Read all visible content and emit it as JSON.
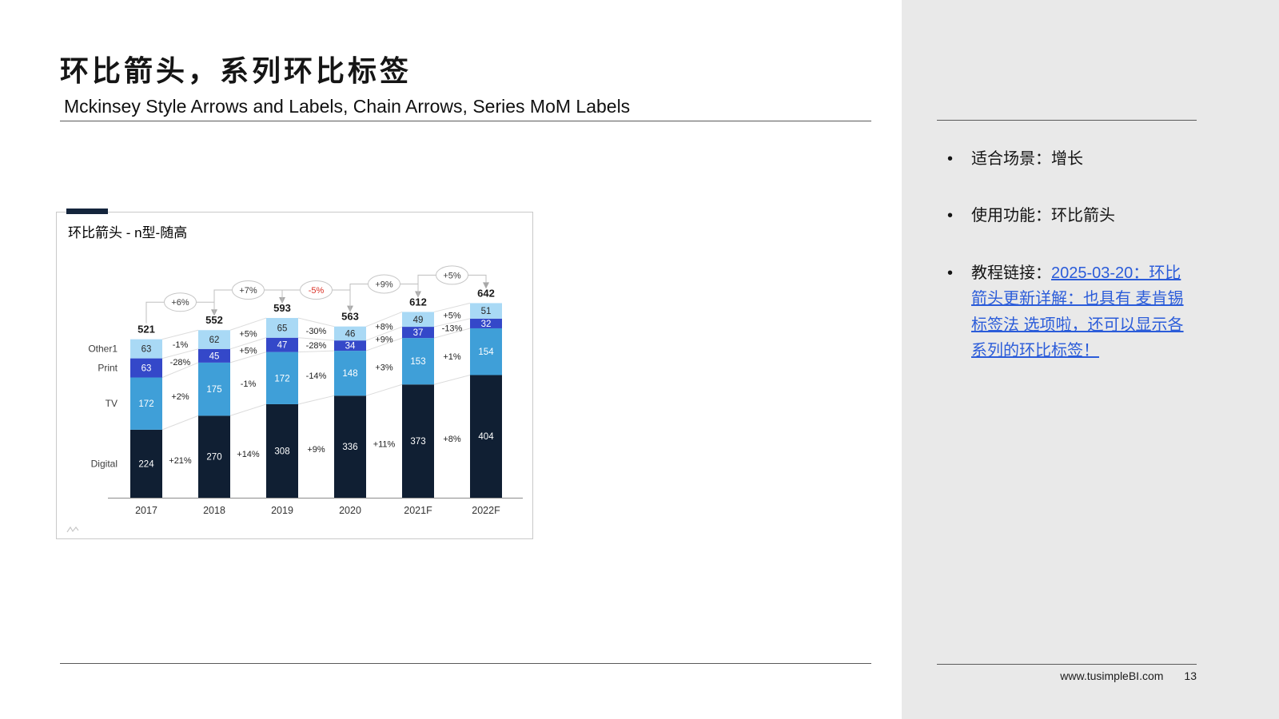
{
  "header": {
    "title_zh": "环比箭头，系列环比标签",
    "subtitle_en": "Mckinsey Style Arrows and Labels, Chain Arrows, Series MoM Labels"
  },
  "chart_panel": {
    "title": "环比箭头 - n型-随高"
  },
  "chart_data": {
    "type": "bar",
    "stacked": true,
    "title": "环比箭头 - n型-随高",
    "categories": [
      "2017",
      "2018",
      "2019",
      "2020",
      "2021F",
      "2022F"
    ],
    "series": [
      {
        "name": "Digital",
        "color": "#101f33",
        "label_color": "#ffffff",
        "values": [
          224,
          270,
          308,
          336,
          373,
          404
        ],
        "mom": [
          "+21%",
          "+14%",
          "+9%",
          "+11%",
          "+8%"
        ]
      },
      {
        "name": "TV",
        "color": "#3f9fd8",
        "label_color": "#ffffff",
        "values": [
          172,
          175,
          172,
          148,
          153,
          154
        ],
        "mom": [
          "+2%",
          "-1%",
          "-14%",
          "+3%",
          "+1%"
        ]
      },
      {
        "name": "Print",
        "color": "#3448c9",
        "label_color": "#ffffff",
        "values": [
          63,
          45,
          47,
          34,
          37,
          32
        ],
        "mom": [
          "-28%",
          "+5%",
          "-28%",
          "+9%",
          "-13%"
        ]
      },
      {
        "name": "Other1",
        "color": "#a9d9f5",
        "label_color": "#2a2a2a",
        "values": [
          63,
          62,
          65,
          46,
          49,
          51
        ],
        "mom": [
          "-1%",
          "+5%",
          "-30%",
          "+8%",
          "+5%"
        ]
      }
    ],
    "totals": [
      "521",
      "552",
      "593",
      "563",
      "612",
      "642"
    ],
    "chain_labels": [
      "+6%",
      "+7%",
      "-5%",
      "+9%",
      "+5%"
    ],
    "chain_label_colors": [
      "#3c3c3c",
      "#3c3c3c",
      "#d93025",
      "#3c3c3c",
      "#3c3c3c"
    ],
    "negative_color": "#d93025",
    "ylim": [
      0,
      700
    ],
    "legend_position": "left-series-labels",
    "grid": false
  },
  "sidebar": {
    "bullet_char": "•",
    "bullets": [
      {
        "text": "适合场景：增长"
      },
      {
        "text": "使用功能：环比箭头"
      },
      {
        "text": "教程链接：",
        "link_text": "2025-03-20：环比箭头更新详解：也具有 麦肯锡标签法 选项啦，还可以显示各系列的环比标签！"
      }
    ]
  },
  "footer": {
    "site": "www.tusimpleBI.com",
    "page": "13"
  }
}
